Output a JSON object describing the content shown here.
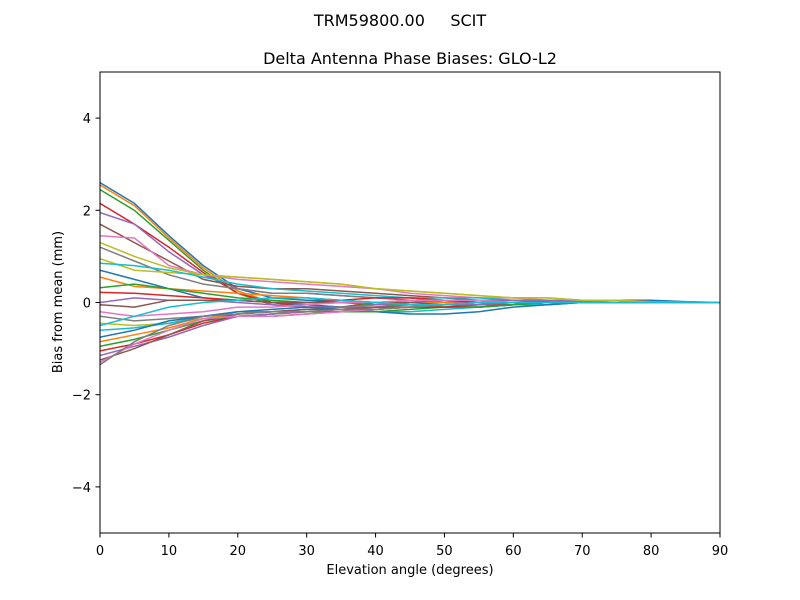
{
  "chart_data": {
    "type": "line",
    "suptitle": "TRM59800.00     SCIT",
    "title": "Delta Antenna Phase Biases: GLO-L2",
    "xlabel": "Elevation angle (degrees)",
    "ylabel": "Bias from mean (mm)",
    "xlim": [
      0,
      90
    ],
    "ylim": [
      -5,
      5
    ],
    "xticks": [
      0,
      10,
      20,
      30,
      40,
      50,
      60,
      70,
      80,
      90
    ],
    "yticks": [
      -4,
      -2,
      0,
      2,
      4
    ],
    "ytick_labels": [
      "−4",
      "−2",
      "0",
      "2",
      "4"
    ],
    "grid": false,
    "colors": [
      "#1f77b4",
      "#ff7f0e",
      "#2ca02c",
      "#d62728",
      "#9467bd",
      "#8c564b",
      "#e377c2",
      "#7f7f7f",
      "#bcbd22",
      "#17becf"
    ],
    "x": [
      0,
      5,
      10,
      15,
      20,
      25,
      30,
      35,
      40,
      45,
      50,
      55,
      60,
      65,
      70,
      75,
      80,
      85,
      90
    ],
    "series": [
      [
        2.6,
        2.15,
        1.45,
        0.8,
        0.3,
        0.1,
        0.05,
        0.05,
        0.0,
        -0.05,
        -0.1,
        -0.1,
        -0.05,
        0,
        0.05,
        0.05,
        0.05,
        0.02,
        0
      ],
      [
        2.55,
        2.1,
        1.4,
        0.75,
        0.25,
        0.0,
        -0.05,
        -0.1,
        -0.1,
        -0.1,
        -0.1,
        -0.05,
        0,
        0.05,
        0.05,
        0.05,
        0.02,
        0.01,
        0
      ],
      [
        2.45,
        2.0,
        1.35,
        0.7,
        0.2,
        -0.05,
        -0.1,
        -0.1,
        -0.05,
        0,
        0.05,
        0.05,
        0.05,
        0.05,
        0.02,
        0,
        0,
        0,
        0
      ],
      [
        2.15,
        1.7,
        1.2,
        0.65,
        0.2,
        0.0,
        -0.1,
        -0.1,
        0,
        0.05,
        0.05,
        0,
        0,
        0,
        0,
        0,
        0,
        0,
        0
      ],
      [
        1.95,
        1.7,
        1.1,
        0.6,
        0.3,
        0.2,
        0.2,
        0.15,
        0.1,
        0.05,
        0,
        0,
        0,
        0,
        0,
        0,
        0,
        0,
        0
      ],
      [
        1.7,
        1.3,
        0.9,
        0.5,
        0.35,
        0.3,
        0.3,
        0.25,
        0.2,
        0.15,
        0.1,
        0.05,
        0.05,
        0.02,
        0,
        0,
        0,
        0,
        0
      ],
      [
        1.45,
        1.4,
        0.8,
        0.6,
        0.5,
        0.45,
        0.4,
        0.35,
        0.3,
        0.2,
        0.15,
        0.1,
        0.1,
        0.05,
        0.05,
        0,
        0,
        0,
        0
      ],
      [
        1.2,
        0.9,
        0.6,
        0.4,
        0.3,
        0.2,
        0.2,
        0.15,
        0.1,
        0.1,
        0.05,
        0.05,
        0,
        0,
        0,
        0,
        0,
        0,
        0
      ],
      [
        0.95,
        0.7,
        0.65,
        0.6,
        0.55,
        0.5,
        0.45,
        0.4,
        0.3,
        0.25,
        0.2,
        0.15,
        0.1,
        0.1,
        0.05,
        0.05,
        0,
        0,
        0
      ],
      [
        0.85,
        0.8,
        0.7,
        0.55,
        0.4,
        0.3,
        0.25,
        0.2,
        0.15,
        0.1,
        0.1,
        0.1,
        0.05,
        0.05,
        0,
        0,
        0,
        0,
        0
      ],
      [
        0.7,
        0.5,
        0.3,
        0.1,
        0.05,
        0,
        -0.05,
        -0.1,
        -0.15,
        -0.1,
        -0.1,
        -0.1,
        -0.05,
        0,
        0,
        0,
        0,
        0,
        0
      ],
      [
        0.55,
        0.35,
        0.3,
        0.25,
        0.2,
        0.15,
        0.1,
        0.05,
        0,
        0,
        0,
        0.05,
        0.05,
        0.05,
        0,
        0,
        0,
        0,
        0
      ],
      [
        0.32,
        0.4,
        0.3,
        0.2,
        0.1,
        0.05,
        0,
        0,
        -0.05,
        -0.05,
        -0.1,
        -0.1,
        -0.05,
        0,
        0,
        0,
        0,
        0,
        0
      ],
      [
        0.22,
        0.2,
        0.15,
        0.1,
        0.05,
        0,
        0,
        0.05,
        0.1,
        0.1,
        0.05,
        0,
        0,
        0,
        0,
        0,
        0,
        0,
        0
      ],
      [
        0,
        0.1,
        0.05,
        0.05,
        0,
        -0.05,
        -0.1,
        -0.1,
        -0.05,
        0,
        0.05,
        0.05,
        0.05,
        0.05,
        0.02,
        0,
        0,
        0,
        0
      ],
      [
        -0.05,
        -0.1,
        0.05,
        0.05,
        0.05,
        0,
        0,
        0,
        0,
        0,
        -0.05,
        -0.05,
        -0.05,
        0,
        0,
        0,
        0,
        0,
        0
      ],
      [
        -0.2,
        -0.3,
        -0.25,
        -0.2,
        -0.1,
        -0.1,
        -0.05,
        0,
        0,
        0.05,
        0.05,
        0.05,
        0,
        0,
        0,
        0,
        0,
        0,
        0
      ],
      [
        -0.3,
        -0.4,
        -0.35,
        -0.3,
        -0.2,
        -0.2,
        -0.15,
        -0.1,
        -0.1,
        -0.05,
        -0.05,
        0,
        0,
        0,
        0,
        0,
        0,
        0,
        0
      ],
      [
        -0.45,
        -0.5,
        -0.45,
        -0.35,
        -0.3,
        -0.25,
        -0.2,
        -0.2,
        -0.15,
        -0.1,
        -0.05,
        0,
        0,
        0,
        0,
        0,
        0,
        0,
        0
      ],
      [
        -0.6,
        -0.55,
        -0.45,
        -0.3,
        -0.25,
        -0.2,
        -0.15,
        -0.15,
        -0.2,
        -0.2,
        -0.15,
        -0.1,
        -0.05,
        -0.05,
        0,
        0,
        0,
        0,
        0
      ],
      [
        -0.75,
        -0.6,
        -0.4,
        -0.3,
        -0.2,
        -0.15,
        -0.1,
        -0.15,
        -0.2,
        -0.25,
        -0.25,
        -0.2,
        -0.1,
        -0.05,
        0,
        0,
        0,
        0,
        0
      ],
      [
        -0.85,
        -0.7,
        -0.55,
        -0.35,
        -0.25,
        -0.2,
        -0.2,
        -0.15,
        -0.15,
        -0.1,
        -0.1,
        -0.05,
        0,
        0,
        0,
        0,
        0,
        0,
        0
      ],
      [
        -0.95,
        -0.8,
        -0.6,
        -0.4,
        -0.3,
        -0.25,
        -0.2,
        -0.2,
        -0.2,
        -0.15,
        -0.1,
        -0.1,
        -0.05,
        0,
        0,
        0,
        0,
        0,
        0
      ],
      [
        -1.05,
        -0.9,
        -0.7,
        -0.45,
        -0.3,
        -0.3,
        -0.25,
        -0.2,
        -0.15,
        -0.1,
        -0.1,
        -0.05,
        0,
        0,
        0,
        0,
        0,
        0,
        0
      ],
      [
        -1.15,
        -0.95,
        -0.75,
        -0.5,
        -0.3,
        -0.25,
        -0.2,
        -0.15,
        -0.1,
        -0.1,
        -0.05,
        -0.05,
        0,
        0,
        0,
        0,
        0,
        0,
        0
      ],
      [
        -1.25,
        -1.0,
        -0.7,
        -0.4,
        -0.25,
        -0.2,
        -0.15,
        -0.15,
        -0.1,
        -0.1,
        -0.05,
        0,
        0,
        0,
        0,
        0,
        0,
        0,
        0
      ],
      [
        -1.3,
        -0.9,
        -0.6,
        -0.35,
        -0.3,
        -0.3,
        -0.25,
        -0.2,
        -0.15,
        -0.1,
        -0.05,
        0,
        0,
        0,
        0,
        0,
        0,
        0,
        0
      ],
      [
        -1.35,
        -0.85,
        -0.5,
        -0.3,
        -0.25,
        -0.2,
        -0.2,
        -0.15,
        -0.15,
        -0.1,
        -0.05,
        0,
        0,
        0,
        0,
        0,
        0,
        0,
        0
      ],
      [
        1.3,
        1.0,
        0.75,
        0.6,
        0.55,
        0.5,
        0.45,
        0.4,
        0.3,
        0.25,
        0.2,
        0.15,
        0.1,
        0.1,
        0.05,
        0.05,
        0,
        0,
        0
      ],
      [
        -0.5,
        -0.3,
        -0.1,
        0,
        0.05,
        0.1,
        0.1,
        0.05,
        0,
        -0.05,
        -0.05,
        0,
        0,
        0,
        0,
        0,
        0,
        0,
        0
      ]
    ]
  }
}
